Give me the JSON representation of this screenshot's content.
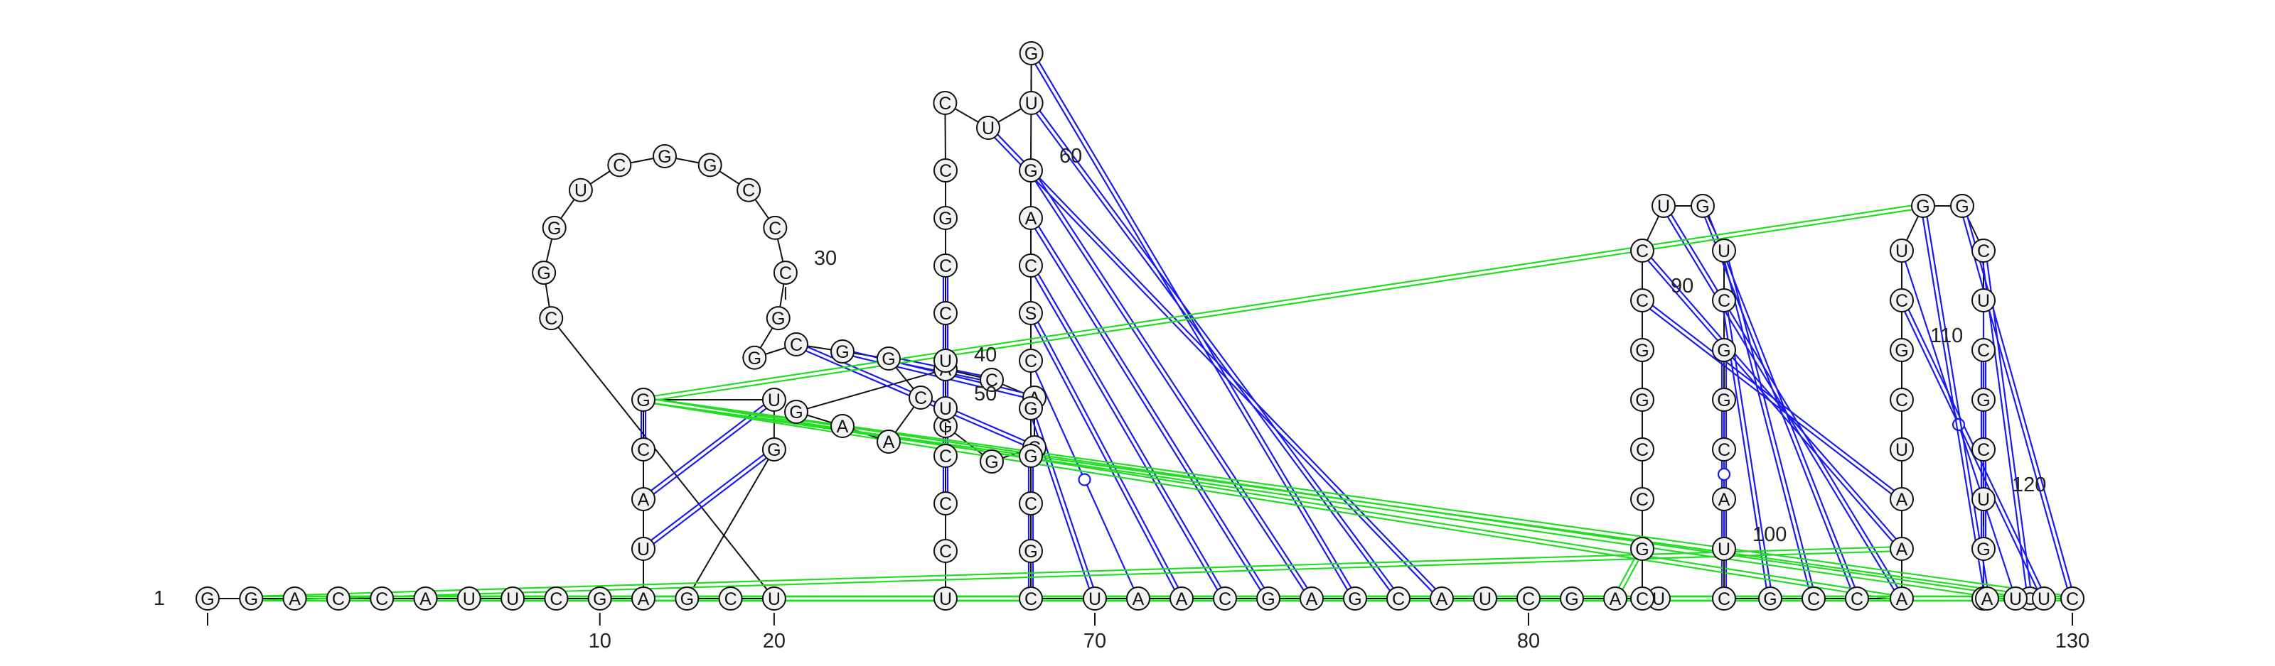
{
  "sequence": "GGACCAUUCGAUACGUGGCUCGGUCGGCCCGGCGGCAAGACACGGUCCCUUCCGCCUUGGACSCGGCGCUAACGAGCAUCGAUCGCCGGCCUGUCGGCAUCGCCAAAUCGCUGGCUCGCUGGCGAUUC",
  "position_labels": [
    "1",
    "10",
    "20",
    "30",
    "40",
    "50",
    "60",
    "70",
    "80",
    "90",
    "100",
    "110",
    "120",
    "130"
  ],
  "base_pairs": [
    {
      "i": 11,
      "j": 18,
      "type": "wc"
    },
    {
      "i": 12,
      "j": 17,
      "type": "wc"
    },
    {
      "i": 13,
      "j": 16,
      "type": "wc"
    },
    {
      "i": 14,
      "j": 15,
      "type": "wc"
    },
    {
      "i": 33,
      "j": 43,
      "type": "wc"
    },
    {
      "i": 34,
      "j": 42,
      "type": "wc"
    },
    {
      "i": 35,
      "j": 41,
      "type": "wc"
    },
    {
      "i": 57,
      "j": 78,
      "type": "wc"
    },
    {
      "i": 58,
      "j": 77,
      "type": "wc"
    },
    {
      "i": 59,
      "j": 76,
      "type": "wc"
    },
    {
      "i": 60,
      "j": 75,
      "type": "wc"
    },
    {
      "i": 61,
      "j": 74,
      "type": "wc"
    },
    {
      "i": 62,
      "j": 73,
      "type": "wc"
    },
    {
      "i": 63,
      "j": 72,
      "type": "wc"
    },
    {
      "i": 64,
      "j": 71,
      "type": "gu"
    },
    {
      "i": 65,
      "j": 70,
      "type": "wc"
    },
    {
      "i": 66,
      "j": 69,
      "type": "wc"
    },
    {
      "i": 48,
      "j": 53,
      "type": "wc"
    },
    {
      "i": 49,
      "j": 52,
      "type": "wc"
    },
    {
      "i": 90,
      "j": 107,
      "type": "wc"
    },
    {
      "i": 91,
      "j": 106,
      "type": "wc"
    },
    {
      "i": 92,
      "j": 105,
      "type": "wc"
    },
    {
      "i": 93,
      "j": 104,
      "type": "wc"
    },
    {
      "i": 94,
      "j": 103,
      "type": "wc"
    },
    {
      "i": 95,
      "j": 102,
      "type": "wc"
    },
    {
      "i": 96,
      "j": 101,
      "type": "wc"
    },
    {
      "i": 97,
      "j": 100,
      "type": "gu"
    },
    {
      "i": 111,
      "j": 127,
      "type": "wc"
    },
    {
      "i": 112,
      "j": 126,
      "type": "gu"
    },
    {
      "i": 113,
      "j": 125,
      "type": "wc"
    },
    {
      "i": 114,
      "j": 124,
      "type": "wc"
    },
    {
      "i": 115,
      "j": 123,
      "type": "wc"
    },
    {
      "i": 116,
      "j": 122,
      "type": "gu"
    },
    {
      "i": 117,
      "j": 121,
      "type": "wc"
    },
    {
      "i": 118,
      "j": 120,
      "type": "gu"
    }
  ],
  "pseudoknot_pairs": [
    {
      "i": 2,
      "j": 126
    },
    {
      "i": 3,
      "j": 125
    },
    {
      "i": 4,
      "j": 124
    },
    {
      "i": 5,
      "j": 123
    },
    {
      "i": 3,
      "j": 105
    },
    {
      "i": 4,
      "j": 104
    },
    {
      "i": 2,
      "j": 106
    },
    {
      "i": 5,
      "j": 103
    },
    {
      "i": 15,
      "j": 113
    },
    {
      "i": 15,
      "j": 105
    },
    {
      "i": 15,
      "j": 126
    },
    {
      "i": 15,
      "j": 124
    },
    {
      "i": 82,
      "j": 85
    }
  ]
}
